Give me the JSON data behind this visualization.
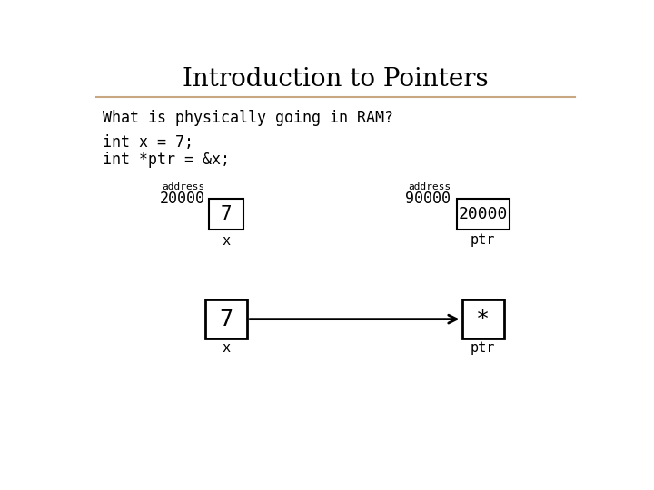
{
  "title": "Introduction to Pointers",
  "subtitle": "What is physically going in RAM?",
  "code_line1": "int x = 7;",
  "code_line2": "int *ptr = &x;",
  "bg_color": "#ffffff",
  "box_color": "#ffffff",
  "title_color": "#000000",
  "title_fontsize": 20,
  "subtitle_fontsize": 12,
  "code_fontsize": 12,
  "top_diagram": {
    "left_label_small": "address",
    "left_label_big": "20000",
    "left_box_value": "7",
    "left_var": "x",
    "right_label_small": "address",
    "right_label_big": "90000",
    "right_box_value": "20000",
    "right_var": "ptr"
  },
  "bottom_diagram": {
    "left_box_value": "7",
    "left_var": "x",
    "right_box_value": "*",
    "right_var": "ptr"
  },
  "sep_line_color": "#c8a882"
}
